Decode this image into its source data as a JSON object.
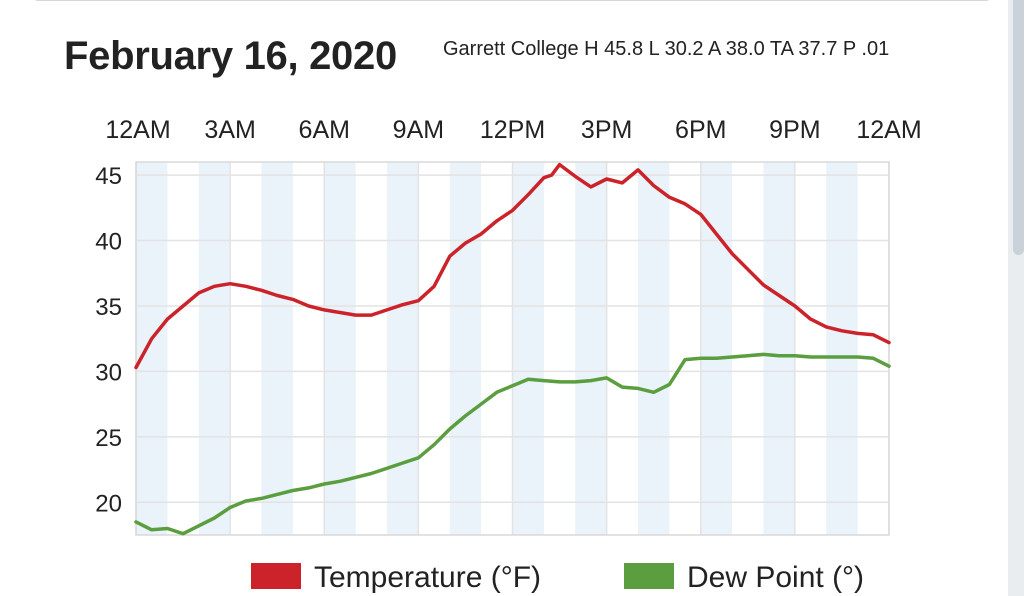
{
  "header": {
    "title": "February 16, 2020",
    "subtitle": "Garrett College H 45.8 L 30.2 A 38.0 TA 37.7 P .01"
  },
  "colors": {
    "temperature": "#cc2229",
    "dew_point": "#5b9e3f",
    "band": "#eaf2fa",
    "grid": "#e3e3e3"
  },
  "chart_data": {
    "type": "line",
    "title": "February 16, 2020",
    "subtitle": "Garrett College H 45.8 L 30.2 A 38.0 TA 37.7 P .01",
    "x_tick_labels": [
      "12AM",
      "3AM",
      "6AM",
      "9AM",
      "12PM",
      "3PM",
      "6PM",
      "9PM",
      "12AM"
    ],
    "x_unit": "hour of day",
    "xlim": [
      0,
      24
    ],
    "y_tick_labels": [
      "45",
      "40",
      "35",
      "30",
      "25",
      "20"
    ],
    "ylim": [
      17.5,
      46
    ],
    "grid": true,
    "legend_position": "bottom",
    "series": [
      {
        "name": "Temperature (°F)",
        "color": "#cc2229",
        "x": [
          0,
          0.5,
          1,
          1.5,
          2,
          2.5,
          3,
          3.5,
          4,
          4.5,
          5,
          5.5,
          6,
          6.5,
          7,
          7.5,
          8,
          8.5,
          9,
          9.5,
          10,
          10.5,
          11,
          11.5,
          12,
          12.5,
          13,
          13.25,
          13.5,
          14,
          14.5,
          15,
          15.5,
          16,
          16.5,
          17,
          17.5,
          18,
          18.5,
          19,
          19.5,
          20,
          20.5,
          21,
          21.5,
          22,
          22.5,
          23,
          23.5,
          24
        ],
        "values": [
          30.3,
          32.5,
          34.0,
          35.0,
          36.0,
          36.5,
          36.7,
          36.5,
          36.2,
          35.8,
          35.5,
          35.0,
          34.7,
          34.5,
          34.3,
          34.3,
          34.7,
          35.1,
          35.4,
          36.5,
          38.8,
          39.8,
          40.5,
          41.5,
          42.3,
          43.5,
          44.8,
          45.0,
          45.8,
          44.9,
          44.1,
          44.7,
          44.4,
          45.4,
          44.2,
          43.3,
          42.8,
          42.0,
          40.5,
          39.0,
          37.8,
          36.6,
          35.8,
          35.0,
          34.0,
          33.4,
          33.1,
          32.9,
          32.8,
          32.2
        ],
        "mark_count": 1
      },
      {
        "name": "Dew Point (°)",
        "color": "#5b9e3f",
        "x": [
          0,
          0.5,
          1,
          1.5,
          2,
          2.5,
          3,
          3.5,
          4,
          4.5,
          5,
          5.5,
          6,
          6.5,
          7,
          7.5,
          8,
          8.5,
          9,
          9.5,
          10,
          10.5,
          11,
          11.5,
          12,
          12.5,
          13,
          13.5,
          14,
          14.5,
          15,
          15.5,
          16,
          16.5,
          17,
          17.5,
          18,
          18.5,
          19,
          19.5,
          20,
          20.5,
          21,
          21.5,
          22,
          22.5,
          23,
          23.5,
          24
        ],
        "values": [
          18.5,
          17.9,
          18.0,
          17.6,
          18.2,
          18.8,
          19.6,
          20.1,
          20.3,
          20.6,
          20.9,
          21.1,
          21.4,
          21.6,
          21.9,
          22.2,
          22.6,
          23.0,
          23.4,
          24.4,
          25.6,
          26.6,
          27.5,
          28.4,
          28.9,
          29.4,
          29.3,
          29.2,
          29.2,
          29.3,
          29.5,
          28.8,
          28.7,
          28.4,
          29.0,
          30.9,
          31.0,
          31.0,
          31.1,
          31.2,
          31.3,
          31.2,
          31.2,
          31.1,
          31.1,
          31.1,
          31.1,
          31.0,
          30.4
        ]
      }
    ]
  }
}
